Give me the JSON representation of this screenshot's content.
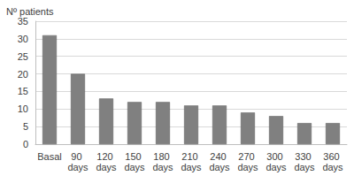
{
  "chart_data": {
    "type": "bar",
    "y_label": "Nº patients",
    "categories": [
      "Basal",
      "90 days",
      "120 days",
      "150 days",
      "180 days",
      "210 days",
      "240 days",
      "270 days",
      "300 days",
      "330 days",
      "360 days"
    ],
    "values": [
      31,
      20,
      13,
      12,
      12,
      11,
      11,
      9,
      8,
      6,
      6
    ],
    "color": "#808080",
    "ylim": [
      0,
      35
    ],
    "yticks": [
      0,
      5,
      10,
      15,
      20,
      25,
      30,
      35
    ],
    "grid": true
  }
}
